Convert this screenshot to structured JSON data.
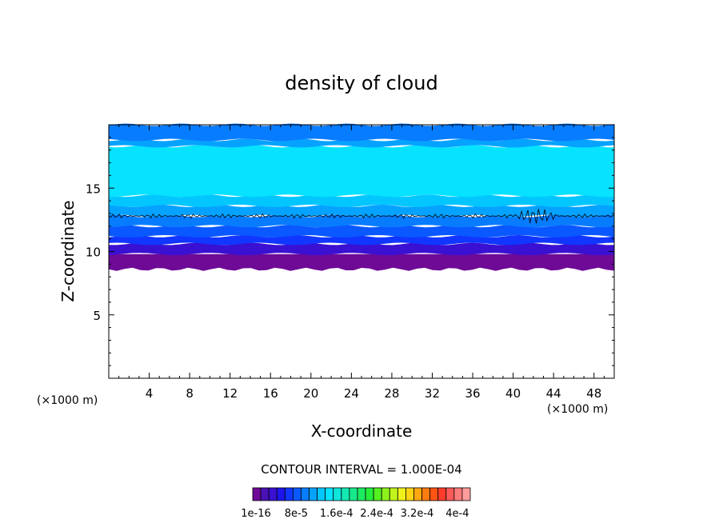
{
  "chart_data": {
    "type": "heatmap",
    "title": "density of cloud",
    "xlabel": "X-coordinate",
    "ylabel": "Z-coordinate",
    "x_unit_left": "(×1000 m)",
    "x_unit_right": "(×1000 m)",
    "xlim": [
      0,
      50
    ],
    "ylim": [
      0,
      20
    ],
    "x_ticks": [
      4,
      8,
      12,
      16,
      20,
      24,
      28,
      32,
      36,
      40,
      44,
      48
    ],
    "y_ticks": [
      5,
      10,
      15
    ],
    "contour_interval_text": "CONTOUR INTERVAL = 1.000E-04",
    "colorbar": {
      "colors": [
        "#6e0a96",
        "#4a12b4",
        "#3a10d2",
        "#1e14ec",
        "#1036ff",
        "#0a58ff",
        "#087cff",
        "#06a2ff",
        "#04c6ff",
        "#06e2ff",
        "#10e6dc",
        "#14e8b4",
        "#18ea8c",
        "#1cec62",
        "#26ee3a",
        "#54f020",
        "#8cf21c",
        "#c0f41c",
        "#eef21a",
        "#ffd414",
        "#ffa810",
        "#ff7c10",
        "#ff5414",
        "#ff3c2c",
        "#ff5a5a",
        "#ff7c7c",
        "#ff9c9c"
      ],
      "labels": [
        "1e-16",
        "8e-5",
        "1.6e-4",
        "2.4e-4",
        "3.2e-4",
        "4e-4"
      ]
    },
    "layers": [
      {
        "z0": 8.6,
        "z1": 9.8,
        "color": "#6e0a96"
      },
      {
        "z0": 9.8,
        "z1": 10.6,
        "color": "#3a10d2"
      },
      {
        "z0": 10.6,
        "z1": 11.2,
        "color": "#1036ff"
      },
      {
        "z0": 11.2,
        "z1": 12.0,
        "color": "#0a58ff"
      },
      {
        "z0": 12.0,
        "z1": 12.8,
        "color": "#087cff"
      },
      {
        "z0": 12.8,
        "z1": 13.6,
        "color": "#06a2ff"
      },
      {
        "z0": 13.6,
        "z1": 14.4,
        "color": "#04c6ff"
      },
      {
        "z0": 14.4,
        "z1": 18.3,
        "color": "#06e2ff"
      },
      {
        "z0": 18.3,
        "z1": 18.8,
        "color": "#06a2ff"
      },
      {
        "z0": 18.8,
        "z1": 20.0,
        "color": "#087cff"
      }
    ],
    "contour_line_z": 12.8
  }
}
